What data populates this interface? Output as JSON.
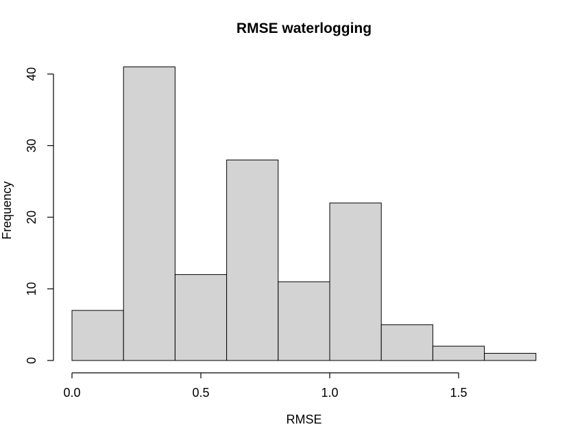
{
  "figure": {
    "background": "#ffffff"
  },
  "chart_data": {
    "type": "bar",
    "chart_kind": "histogram",
    "title": "RMSE waterlogging",
    "xlabel": "RMSE",
    "ylabel": "Frequency",
    "bin_edges": [
      0.0,
      0.2,
      0.4,
      0.6,
      0.8,
      1.0,
      1.2,
      1.4,
      1.6,
      1.8
    ],
    "counts": [
      7,
      41,
      12,
      28,
      11,
      22,
      5,
      2,
      1
    ],
    "x_tick_labels": [
      "0.0",
      "0.5",
      "1.0",
      "1.5"
    ],
    "x_tick_values": [
      0.0,
      0.5,
      1.0,
      1.5
    ],
    "y_tick_labels": [
      "0",
      "10",
      "20",
      "30",
      "40"
    ],
    "y_tick_values": [
      0,
      10,
      20,
      30,
      40
    ],
    "xlim": [
      0.0,
      1.5
    ],
    "ylim": [
      0,
      40
    ],
    "grid": false,
    "legend_position": "none",
    "colors": {
      "bar_fill": "#d3d3d3",
      "bar_stroke": "#000000",
      "axis": "#000000",
      "text": "#000000"
    }
  }
}
